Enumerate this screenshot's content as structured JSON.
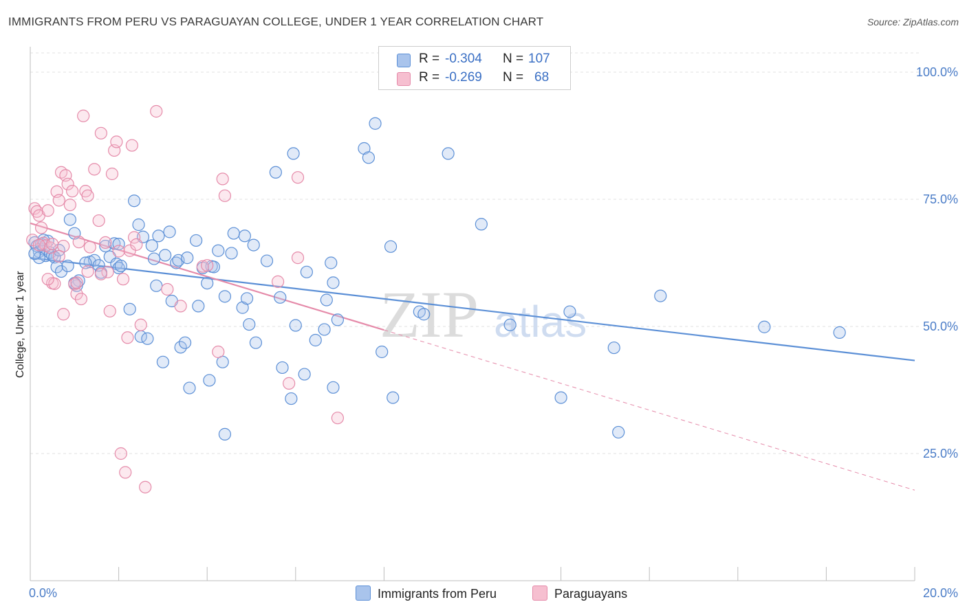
{
  "title": "IMMIGRANTS FROM PERU VS PARAGUAYAN COLLEGE, UNDER 1 YEAR CORRELATION CHART",
  "source": "Source: ZipAtlas.com",
  "watermark": {
    "zip": "ZIP",
    "atlas": "atlas"
  },
  "legend": {
    "rows": [
      {
        "r_label": "R =",
        "r_value": "-0.304",
        "n_label": "N =",
        "n_value": "107",
        "color": "#a9c4ec",
        "edge": "#5b8fd6"
      },
      {
        "r_label": "R =",
        "r_value": "-0.269",
        "n_label": "N =",
        "n_value": "68",
        "color": "#f6bfd0",
        "edge": "#e58aa9"
      }
    ]
  },
  "bottom_legend": [
    {
      "label": "Immigrants from Peru",
      "color": "#a9c4ec",
      "edge": "#5b8fd6"
    },
    {
      "label": "Paraguayans",
      "color": "#f6bfd0",
      "edge": "#e58aa9"
    }
  ],
  "chart_data": {
    "type": "scatter",
    "xlabel": "",
    "ylabel": "College, Under 1 year",
    "xlim": [
      0,
      20
    ],
    "ylim": [
      0,
      105
    ],
    "x_tick_labels": [
      "0.0%",
      "20.0%"
    ],
    "y_ticks": [
      25,
      50,
      75,
      100
    ],
    "y_tick_labels": [
      "25.0%",
      "50.0%",
      "75.0%",
      "100.0%"
    ],
    "grid": true,
    "series": [
      {
        "name": "Immigrants from Peru",
        "color": "#5b8fd6",
        "fill": "rgba(169,196,236,0.35)",
        "trend": {
          "x": [
            0,
            20
          ],
          "y": [
            63.5,
            43.3
          ],
          "dashed_from": null
        },
        "points": [
          [
            0.1,
            66.5
          ],
          [
            0.15,
            65.8
          ],
          [
            0.2,
            64.7
          ],
          [
            0.25,
            66.2
          ],
          [
            0.3,
            65.2
          ],
          [
            0.35,
            63.9
          ],
          [
            0.4,
            66.8
          ],
          [
            0.45,
            64.5
          ],
          [
            0.5,
            64.0
          ],
          [
            0.55,
            63.6
          ],
          [
            0.6,
            61.7
          ],
          [
            0.65,
            65.0
          ],
          [
            0.7,
            60.8
          ],
          [
            0.85,
            61.9
          ],
          [
            0.9,
            71.0
          ],
          [
            1.0,
            68.3
          ],
          [
            1.05,
            58.0
          ],
          [
            1.1,
            59.0
          ],
          [
            1.35,
            62.7
          ],
          [
            1.45,
            63.0
          ],
          [
            1.55,
            62.0
          ],
          [
            1.6,
            60.6
          ],
          [
            1.7,
            65.8
          ],
          [
            1.8,
            63.7
          ],
          [
            1.9,
            66.3
          ],
          [
            1.95,
            62.3
          ],
          [
            2.0,
            61.5
          ],
          [
            2.05,
            61.9
          ],
          [
            2.25,
            53.4
          ],
          [
            2.35,
            74.7
          ],
          [
            2.45,
            70.0
          ],
          [
            2.5,
            48.0
          ],
          [
            2.55,
            67.6
          ],
          [
            2.65,
            47.6
          ],
          [
            2.75,
            65.9
          ],
          [
            2.8,
            63.3
          ],
          [
            2.85,
            58.0
          ],
          [
            2.9,
            67.8
          ],
          [
            3.0,
            43.0
          ],
          [
            3.05,
            64.0
          ],
          [
            3.15,
            68.6
          ],
          [
            3.2,
            55.0
          ],
          [
            3.3,
            62.5
          ],
          [
            3.35,
            63.0
          ],
          [
            3.4,
            45.9
          ],
          [
            3.5,
            46.8
          ],
          [
            3.55,
            63.5
          ],
          [
            3.6,
            37.9
          ],
          [
            3.75,
            66.9
          ],
          [
            3.8,
            54.0
          ],
          [
            3.9,
            61.5
          ],
          [
            4.0,
            58.5
          ],
          [
            4.05,
            39.4
          ],
          [
            4.1,
            61.8
          ],
          [
            4.15,
            61.7
          ],
          [
            4.25,
            64.9
          ],
          [
            4.35,
            43.0
          ],
          [
            4.4,
            55.9
          ],
          [
            4.4,
            28.8
          ],
          [
            4.55,
            64.4
          ],
          [
            4.6,
            68.3
          ],
          [
            4.8,
            53.7
          ],
          [
            4.85,
            67.8
          ],
          [
            4.9,
            55.5
          ],
          [
            4.95,
            50.4
          ],
          [
            5.05,
            66.0
          ],
          [
            5.1,
            46.8
          ],
          [
            5.35,
            62.9
          ],
          [
            5.55,
            80.3
          ],
          [
            5.65,
            55.7
          ],
          [
            5.7,
            41.9
          ],
          [
            5.9,
            35.8
          ],
          [
            5.95,
            84.0
          ],
          [
            6.0,
            50.2
          ],
          [
            6.2,
            40.6
          ],
          [
            6.25,
            60.7
          ],
          [
            6.45,
            47.3
          ],
          [
            6.65,
            49.4
          ],
          [
            6.7,
            55.2
          ],
          [
            6.8,
            62.5
          ],
          [
            6.85,
            58.6
          ],
          [
            6.85,
            38.0
          ],
          [
            6.95,
            51.3
          ],
          [
            7.55,
            85.0
          ],
          [
            7.65,
            83.2
          ],
          [
            7.8,
            89.9
          ],
          [
            7.95,
            45.0
          ],
          [
            8.15,
            65.7
          ],
          [
            8.2,
            36.0
          ],
          [
            8.8,
            52.9
          ],
          [
            8.9,
            52.4
          ],
          [
            9.45,
            84.0
          ],
          [
            10.2,
            70.1
          ],
          [
            10.85,
            50.3
          ],
          [
            12.0,
            36.0
          ],
          [
            12.2,
            52.9
          ],
          [
            13.2,
            45.8
          ],
          [
            13.3,
            29.2
          ],
          [
            14.25,
            56.0
          ],
          [
            16.6,
            49.9
          ],
          [
            18.3,
            48.8
          ],
          [
            0.2,
            63.5
          ],
          [
            0.1,
            64.3
          ],
          [
            0.3,
            67.0
          ],
          [
            1.25,
            62.5
          ],
          [
            2.0,
            66.2
          ],
          [
            1.0,
            58.5
          ]
        ]
      },
      {
        "name": "Paraguayans",
        "color": "#e58aa9",
        "fill": "rgba(246,191,208,0.35)",
        "trend": {
          "x": [
            0,
            20
          ],
          "y": [
            70.3,
            17.8
          ],
          "dashed_from": 8.0
        },
        "points": [
          [
            0.1,
            73.2
          ],
          [
            0.15,
            72.6
          ],
          [
            0.2,
            71.8
          ],
          [
            0.25,
            69.4
          ],
          [
            0.3,
            66.4
          ],
          [
            0.35,
            65.9
          ],
          [
            0.4,
            72.8
          ],
          [
            0.45,
            65.5
          ],
          [
            0.5,
            58.5
          ],
          [
            0.55,
            58.4
          ],
          [
            0.6,
            76.5
          ],
          [
            0.65,
            74.8
          ],
          [
            0.7,
            80.3
          ],
          [
            0.75,
            52.4
          ],
          [
            0.8,
            79.7
          ],
          [
            0.85,
            78.0
          ],
          [
            0.9,
            73.9
          ],
          [
            0.95,
            76.6
          ],
          [
            1.0,
            58.3
          ],
          [
            1.05,
            56.4
          ],
          [
            1.1,
            66.6
          ],
          [
            1.15,
            55.4
          ],
          [
            1.2,
            91.4
          ],
          [
            1.25,
            76.6
          ],
          [
            1.3,
            75.7
          ],
          [
            1.35,
            65.6
          ],
          [
            1.45,
            80.9
          ],
          [
            1.55,
            70.8
          ],
          [
            1.6,
            88.0
          ],
          [
            1.7,
            66.5
          ],
          [
            1.75,
            60.7
          ],
          [
            1.8,
            53.0
          ],
          [
            1.85,
            80.0
          ],
          [
            1.9,
            84.6
          ],
          [
            1.95,
            86.3
          ],
          [
            2.0,
            64.8
          ],
          [
            2.05,
            25.0
          ],
          [
            2.1,
            59.3
          ],
          [
            2.15,
            21.3
          ],
          [
            2.2,
            47.8
          ],
          [
            2.25,
            64.9
          ],
          [
            2.3,
            85.6
          ],
          [
            2.35,
            67.5
          ],
          [
            2.4,
            66.1
          ],
          [
            2.5,
            50.3
          ],
          [
            2.6,
            18.4
          ],
          [
            2.85,
            92.3
          ],
          [
            3.1,
            57.3
          ],
          [
            3.4,
            54.0
          ],
          [
            3.9,
            61.8
          ],
          [
            4.0,
            62.0
          ],
          [
            4.25,
            45.0
          ],
          [
            4.35,
            79.0
          ],
          [
            4.4,
            75.7
          ],
          [
            5.6,
            58.8
          ],
          [
            5.85,
            38.8
          ],
          [
            6.05,
            79.3
          ],
          [
            6.05,
            63.5
          ],
          [
            6.95,
            32.0
          ],
          [
            0.05,
            67.0
          ],
          [
            0.2,
            66.0
          ],
          [
            0.4,
            59.3
          ],
          [
            0.5,
            66.2
          ],
          [
            0.75,
            65.8
          ],
          [
            1.05,
            58.6
          ],
          [
            1.3,
            60.8
          ],
          [
            0.65,
            63.8
          ],
          [
            1.6,
            60.3
          ]
        ]
      }
    ]
  }
}
